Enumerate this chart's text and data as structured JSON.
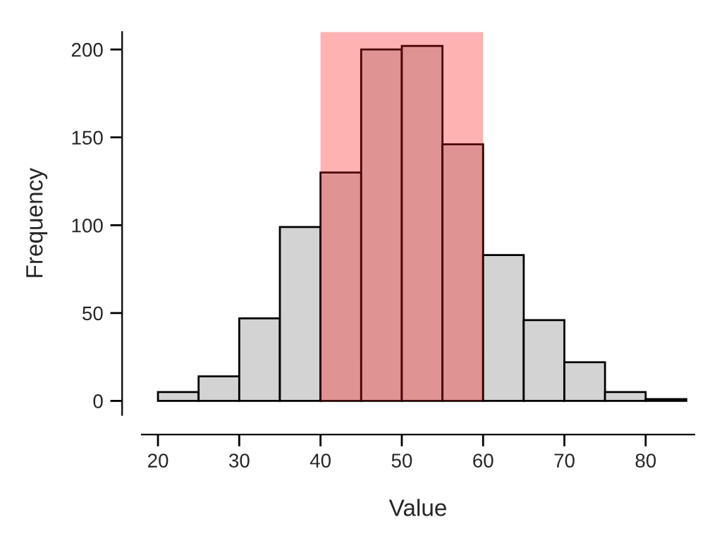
{
  "chart_data": {
    "type": "histogram",
    "xlabel": "Value",
    "ylabel": "Frequency",
    "bins": [
      20,
      25,
      30,
      35,
      40,
      45,
      50,
      55,
      60,
      65,
      70,
      75,
      80,
      85
    ],
    "values": [
      5,
      14,
      47,
      99,
      130,
      200,
      202,
      146,
      83,
      46,
      22,
      5,
      1
    ],
    "color": "#d3d3d3",
    "xlim": [
      18,
      86
    ],
    "xticks": [
      20,
      30,
      40,
      50,
      60,
      70,
      80
    ],
    "ylim": [
      -8,
      210
    ],
    "yticks": [
      0,
      50,
      100,
      150,
      200
    ],
    "bands": [
      {
        "axis": "x",
        "from": 40,
        "to": 60,
        "color": "#ff0000"
      }
    ],
    "grid": false,
    "legend": false
  }
}
